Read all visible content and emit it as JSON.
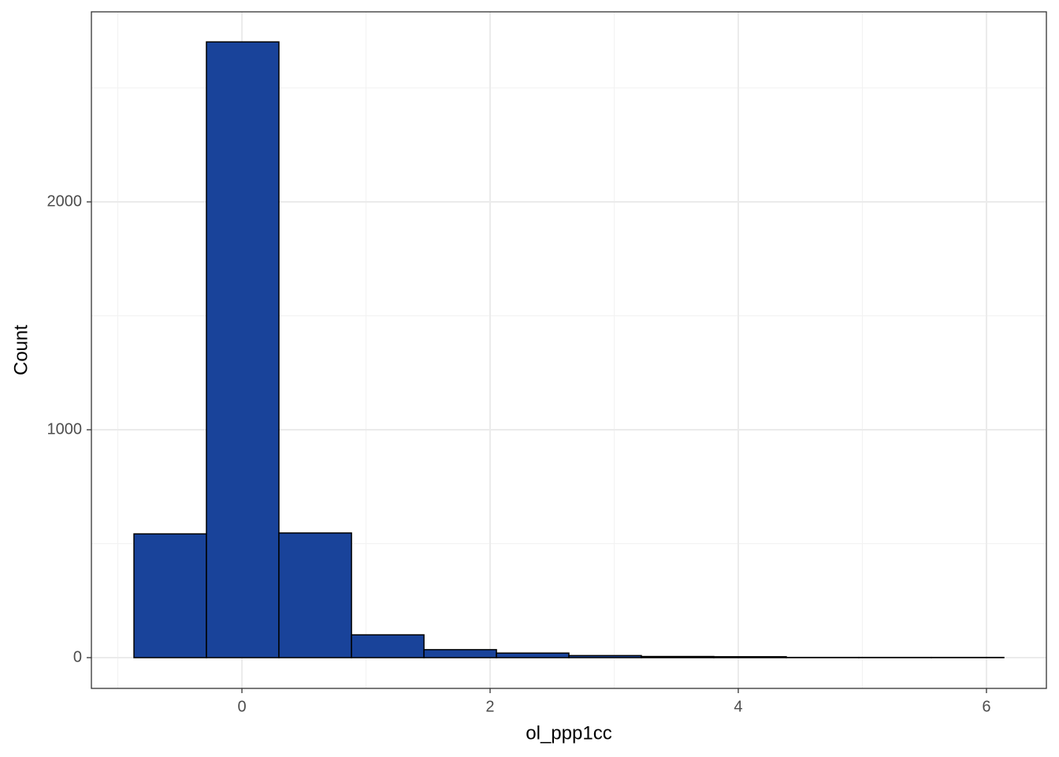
{
  "chart_data": {
    "type": "histogram",
    "x_label": "ol_ppp1cc",
    "y_label": "Count",
    "bins": [
      -0.87,
      -0.286,
      0.298,
      0.883,
      1.467,
      2.051,
      2.635,
      3.219,
      3.803,
      4.387,
      4.971,
      5.556,
      6.14
    ],
    "values": [
      543,
      2702,
      547,
      100,
      35,
      20,
      9,
      5,
      4,
      1,
      1,
      1
    ],
    "color": "#19439a",
    "xlim": [
      -1.213,
      6.483
    ],
    "ylim": [
      -135,
      2834
    ],
    "xticks": [
      0,
      2,
      4,
      6
    ],
    "yticks": [
      0,
      1000,
      2000
    ],
    "xminor": [
      -1,
      1,
      3,
      5
    ],
    "yminor": [
      500,
      1500,
      2500
    ],
    "grid": true
  }
}
